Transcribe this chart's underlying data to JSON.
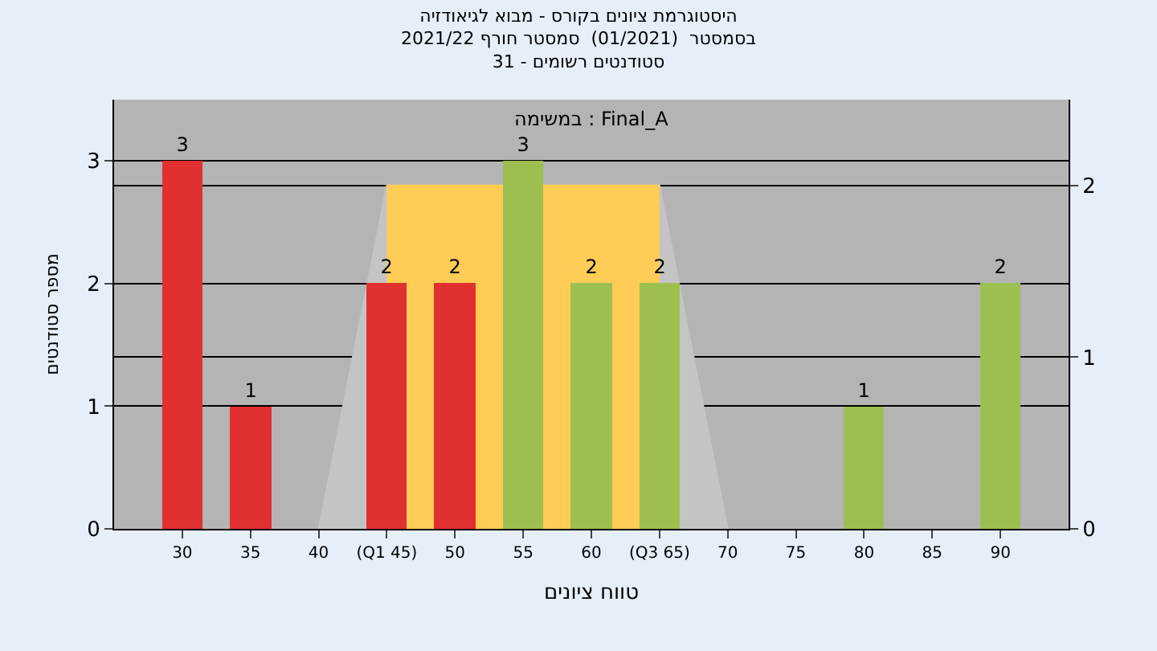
{
  "chart_data": {
    "type": "bar",
    "title": "היסטוגרמת ציונים בקורס - מבוא לגיאודזיה",
    "subtitle": "בסמסטר  (01/2021)  סמסטר חורף 2021/22\nסטודנטים רשומים - 31",
    "xlabel": "טווח ציונים",
    "ylabel": "מספר סטודנטים",
    "annotations": [
      "במשימה : Final_A"
    ],
    "series": [
      {
        "type": "area",
        "axis": "y2",
        "color": "#c4c4c4",
        "x": [
          40,
          45,
          65,
          70
        ],
        "values": [
          0,
          2,
          2,
          0
        ]
      },
      {
        "type": "area",
        "axis": "y2",
        "color": "#ffcc55",
        "x": [
          45,
          65
        ],
        "values": [
          2,
          2
        ]
      },
      {
        "x": [
          30,
          35,
          45,
          50,
          55,
          60,
          65,
          80,
          90
        ],
        "values": [
          3,
          1,
          2,
          2,
          3,
          2,
          2,
          1,
          2
        ],
        "value_labels": [
          "3",
          "1",
          "2",
          "2",
          "3",
          "2",
          "2",
          "1",
          "2"
        ],
        "colors": [
          "#e03030",
          "#e03030",
          "#e03030",
          "#e03030",
          "#9cbf50",
          "#9cbf50",
          "#9cbf50",
          "#9cbf50",
          "#9cbf50"
        ]
      }
    ],
    "xlim": [
      25,
      95
    ],
    "xticks": [
      30,
      35,
      40,
      {
        "value": 45,
        "label": "(Q1 45)"
      },
      50,
      55,
      60,
      {
        "value": 65,
        "label": "(Q3 65)"
      },
      70,
      75,
      80,
      85,
      90
    ],
    "ylim": [
      0,
      3.5
    ],
    "yticks": [
      0,
      1,
      2,
      3
    ],
    "y2lim": [
      0,
      2.5
    ],
    "y2ticks": [
      0,
      1,
      2
    ],
    "grid": "y"
  }
}
